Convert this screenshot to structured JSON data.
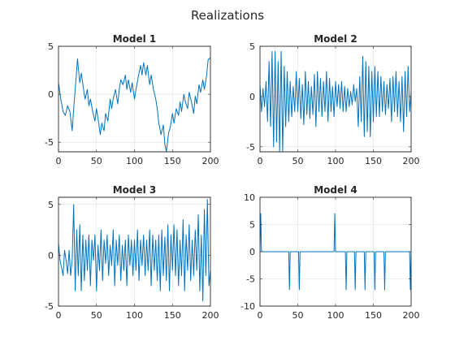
{
  "figure": {
    "title": "Realizations"
  },
  "style": {
    "series_color": "#0072bd"
  },
  "chart_data": [
    {
      "type": "line",
      "title": "Model 1",
      "xlim": [
        0,
        200
      ],
      "ylim": [
        -6,
        5
      ],
      "xticks": [
        0,
        50,
        100,
        150,
        200
      ],
      "yticks": [
        -5,
        0,
        5
      ],
      "grid": true,
      "points": [
        [
          0,
          1.2
        ],
        [
          3,
          -0.5
        ],
        [
          6,
          -1.8
        ],
        [
          9,
          -2.2
        ],
        [
          12,
          -1.2
        ],
        [
          15,
          -1.8
        ],
        [
          18,
          -3.8
        ],
        [
          20,
          -1.5
        ],
        [
          23,
          1.5
        ],
        [
          25,
          3.7
        ],
        [
          28,
          1.2
        ],
        [
          30,
          2.2
        ],
        [
          33,
          0.5
        ],
        [
          35,
          -0.5
        ],
        [
          38,
          0.5
        ],
        [
          40,
          -1.2
        ],
        [
          42,
          -0.5
        ],
        [
          45,
          -1.8
        ],
        [
          48,
          -2.8
        ],
        [
          50,
          -1.5
        ],
        [
          52,
          -2.5
        ],
        [
          55,
          -4.2
        ],
        [
          57,
          -3.0
        ],
        [
          60,
          -3.8
        ],
        [
          62,
          -2.0
        ],
        [
          65,
          -2.8
        ],
        [
          68,
          -0.5
        ],
        [
          70,
          -1.5
        ],
        [
          72,
          -0.5
        ],
        [
          75,
          0.5
        ],
        [
          78,
          -1.0
        ],
        [
          80,
          0.5
        ],
        [
          82,
          1.5
        ],
        [
          85,
          1.0
        ],
        [
          88,
          2.0
        ],
        [
          90,
          0.5
        ],
        [
          92,
          1.5
        ],
        [
          95,
          0.2
        ],
        [
          97,
          1.2
        ],
        [
          100,
          -0.5
        ],
        [
          102,
          0.5
        ],
        [
          105,
          1.8
        ],
        [
          108,
          3.0
        ],
        [
          110,
          2.0
        ],
        [
          112,
          3.3
        ],
        [
          115,
          2.0
        ],
        [
          117,
          3.0
        ],
        [
          120,
          1.0
        ],
        [
          122,
          2.0
        ],
        [
          125,
          0.5
        ],
        [
          128,
          -0.5
        ],
        [
          130,
          -1.5
        ],
        [
          132,
          -3.0
        ],
        [
          135,
          -4.2
        ],
        [
          138,
          -3.2
        ],
        [
          140,
          -5.2
        ],
        [
          142,
          -6.0
        ],
        [
          145,
          -4.0
        ],
        [
          147,
          -3.5
        ],
        [
          150,
          -2.0
        ],
        [
          152,
          -3.0
        ],
        [
          155,
          -1.5
        ],
        [
          158,
          -2.2
        ],
        [
          160,
          -0.8
        ],
        [
          162,
          -1.8
        ],
        [
          165,
          0.0
        ],
        [
          167,
          -0.8
        ],
        [
          170,
          -1.5
        ],
        [
          172,
          0.2
        ],
        [
          175,
          -0.8
        ],
        [
          178,
          -2.0
        ],
        [
          180,
          -0.2
        ],
        [
          182,
          -1.0
        ],
        [
          185,
          1.0
        ],
        [
          187,
          0.2
        ],
        [
          190,
          1.5
        ],
        [
          192,
          0.5
        ],
        [
          195,
          2.0
        ],
        [
          197,
          3.6
        ],
        [
          200,
          3.8
        ]
      ]
    },
    {
      "type": "line",
      "title": "Model 2",
      "xlim": [
        0,
        200
      ],
      "ylim": [
        -5.5,
        5
      ],
      "xticks": [
        0,
        50,
        100,
        150,
        200
      ],
      "yticks": [
        -5,
        0,
        5
      ],
      "grid": true,
      "points": [
        [
          0,
          1.2
        ],
        [
          2,
          -1.5
        ],
        [
          4,
          0.8
        ],
        [
          6,
          -1.0
        ],
        [
          8,
          1.5
        ],
        [
          10,
          -2.5
        ],
        [
          12,
          3.5
        ],
        [
          14,
          -3.0
        ],
        [
          16,
          4.5
        ],
        [
          18,
          -5.0
        ],
        [
          20,
          4.5
        ],
        [
          22,
          -4.5
        ],
        [
          24,
          3.5
        ],
        [
          26,
          -5.5
        ],
        [
          28,
          4.5
        ],
        [
          30,
          -5.5
        ],
        [
          32,
          3.0
        ],
        [
          34,
          -3.0
        ],
        [
          36,
          2.5
        ],
        [
          38,
          -2.5
        ],
        [
          40,
          1.5
        ],
        [
          42,
          -2.0
        ],
        [
          44,
          1.0
        ],
        [
          46,
          -1.5
        ],
        [
          48,
          2.5
        ],
        [
          50,
          -1.5
        ],
        [
          52,
          1.8
        ],
        [
          54,
          -2.2
        ],
        [
          56,
          1.2
        ],
        [
          58,
          -2.8
        ],
        [
          60,
          2.5
        ],
        [
          62,
          -1.8
        ],
        [
          64,
          1.5
        ],
        [
          66,
          -2.2
        ],
        [
          68,
          1.0
        ],
        [
          70,
          -1.8
        ],
        [
          72,
          2.2
        ],
        [
          74,
          -3.0
        ],
        [
          76,
          2.5
        ],
        [
          78,
          -1.5
        ],
        [
          80,
          1.8
        ],
        [
          82,
          -2.0
        ],
        [
          84,
          1.5
        ],
        [
          86,
          -1.5
        ],
        [
          88,
          2.5
        ],
        [
          90,
          -2.5
        ],
        [
          92,
          1.8
        ],
        [
          94,
          -1.5
        ],
        [
          96,
          1.0
        ],
        [
          98,
          -2.0
        ],
        [
          100,
          1.5
        ],
        [
          102,
          -1.0
        ],
        [
          104,
          1.2
        ],
        [
          106,
          -1.2
        ],
        [
          108,
          1.5
        ],
        [
          110,
          -1.5
        ],
        [
          112,
          1.0
        ],
        [
          114,
          -1.5
        ],
        [
          116,
          0.8
        ],
        [
          118,
          -1.0
        ],
        [
          120,
          0.5
        ],
        [
          122,
          -0.8
        ],
        [
          124,
          1.2
        ],
        [
          126,
          -0.5
        ],
        [
          128,
          0.8
        ],
        [
          130,
          -3.0
        ],
        [
          132,
          2.0
        ],
        [
          134,
          -2.5
        ],
        [
          136,
          4.0
        ],
        [
          138,
          -4.0
        ],
        [
          140,
          3.5
        ],
        [
          142,
          -3.5
        ],
        [
          144,
          3.0
        ],
        [
          146,
          -4.0
        ],
        [
          148,
          2.5
        ],
        [
          150,
          -2.5
        ],
        [
          152,
          3.0
        ],
        [
          154,
          -2.0
        ],
        [
          156,
          2.5
        ],
        [
          158,
          -2.0
        ],
        [
          160,
          2.0
        ],
        [
          162,
          -1.5
        ],
        [
          164,
          1.5
        ],
        [
          166,
          -1.8
        ],
        [
          168,
          1.2
        ],
        [
          170,
          -1.2
        ],
        [
          172,
          1.8
        ],
        [
          174,
          -2.5
        ],
        [
          176,
          2.0
        ],
        [
          178,
          -1.5
        ],
        [
          180,
          2.5
        ],
        [
          182,
          -2.0
        ],
        [
          184,
          1.5
        ],
        [
          186,
          -2.5
        ],
        [
          188,
          2.0
        ],
        [
          190,
          -3.5
        ],
        [
          192,
          2.5
        ],
        [
          194,
          -2.0
        ],
        [
          196,
          3.0
        ],
        [
          198,
          -1.5
        ],
        [
          200,
          0.5
        ]
      ]
    },
    {
      "type": "line",
      "title": "Model 3",
      "xlim": [
        0,
        200
      ],
      "ylim": [
        -5,
        5.7
      ],
      "xticks": [
        0,
        50,
        100,
        150,
        200
      ],
      "yticks": [
        -5,
        0,
        5
      ],
      "grid": true,
      "points": [
        [
          0,
          1.2
        ],
        [
          2,
          -0.5
        ],
        [
          4,
          -1.2
        ],
        [
          6,
          -2.0
        ],
        [
          8,
          0.5
        ],
        [
          10,
          -0.5
        ],
        [
          12,
          -1.8
        ],
        [
          14,
          0.5
        ],
        [
          16,
          -2.0
        ],
        [
          18,
          -0.5
        ],
        [
          20,
          5.0
        ],
        [
          22,
          -3.5
        ],
        [
          24,
          2.5
        ],
        [
          26,
          -2.0
        ],
        [
          28,
          3.0
        ],
        [
          30,
          -3.5
        ],
        [
          32,
          2.0
        ],
        [
          34,
          -2.5
        ],
        [
          36,
          1.5
        ],
        [
          38,
          -1.5
        ],
        [
          40,
          2.0
        ],
        [
          42,
          -3.0
        ],
        [
          44,
          1.5
        ],
        [
          46,
          -0.5
        ],
        [
          48,
          2.0
        ],
        [
          50,
          -3.5
        ],
        [
          52,
          1.0
        ],
        [
          54,
          -1.5
        ],
        [
          56,
          2.5
        ],
        [
          58,
          -2.5
        ],
        [
          60,
          1.5
        ],
        [
          62,
          -0.8
        ],
        [
          64,
          2.0
        ],
        [
          66,
          -2.0
        ],
        [
          68,
          1.0
        ],
        [
          70,
          -1.0
        ],
        [
          72,
          2.5
        ],
        [
          74,
          -3.0
        ],
        [
          76,
          1.5
        ],
        [
          78,
          -1.0
        ],
        [
          80,
          2.0
        ],
        [
          82,
          -2.5
        ],
        [
          84,
          1.0
        ],
        [
          86,
          -1.5
        ],
        [
          88,
          1.5
        ],
        [
          90,
          -3.0
        ],
        [
          92,
          2.0
        ],
        [
          94,
          -1.0
        ],
        [
          96,
          1.5
        ],
        [
          98,
          -2.0
        ],
        [
          100,
          1.5
        ],
        [
          102,
          -1.5
        ],
        [
          104,
          2.5
        ],
        [
          106,
          -2.5
        ],
        [
          108,
          1.5
        ],
        [
          110,
          -1.0
        ],
        [
          112,
          2.0
        ],
        [
          114,
          -2.0
        ],
        [
          116,
          1.5
        ],
        [
          118,
          -1.5
        ],
        [
          120,
          2.5
        ],
        [
          122,
          -3.0
        ],
        [
          124,
          2.0
        ],
        [
          126,
          -1.5
        ],
        [
          128,
          1.5
        ],
        [
          130,
          -2.5
        ],
        [
          132,
          2.0
        ],
        [
          134,
          -3.5
        ],
        [
          136,
          2.5
        ],
        [
          138,
          -2.0
        ],
        [
          140,
          1.8
        ],
        [
          142,
          -2.5
        ],
        [
          144,
          3.0
        ],
        [
          146,
          -3.5
        ],
        [
          148,
          2.0
        ],
        [
          150,
          -1.5
        ],
        [
          152,
          3.0
        ],
        [
          154,
          -2.0
        ],
        [
          156,
          2.5
        ],
        [
          158,
          -3.0
        ],
        [
          160,
          1.5
        ],
        [
          162,
          -2.0
        ],
        [
          164,
          3.5
        ],
        [
          166,
          -3.5
        ],
        [
          168,
          2.0
        ],
        [
          170,
          -1.5
        ],
        [
          172,
          3.0
        ],
        [
          174,
          -2.5
        ],
        [
          176,
          1.5
        ],
        [
          178,
          -2.0
        ],
        [
          180,
          2.5
        ],
        [
          182,
          -1.5
        ],
        [
          184,
          4.0
        ],
        [
          186,
          -3.5
        ],
        [
          188,
          2.0
        ],
        [
          190,
          -4.5
        ],
        [
          192,
          4.5
        ],
        [
          194,
          -2.0
        ],
        [
          196,
          5.5
        ],
        [
          198,
          -3.0
        ],
        [
          200,
          -1.5
        ]
      ]
    },
    {
      "type": "line",
      "title": "Model 4",
      "xlim": [
        0,
        200
      ],
      "ylim": [
        -10,
        10
      ],
      "xticks": [
        0,
        50,
        100,
        150,
        200
      ],
      "yticks": [
        -10,
        -5,
        0,
        5,
        10
      ],
      "grid": true,
      "points": [
        [
          0,
          0
        ],
        [
          1,
          7
        ],
        [
          2,
          0
        ],
        [
          38,
          0
        ],
        [
          39,
          -7
        ],
        [
          40,
          0
        ],
        [
          51,
          0
        ],
        [
          52,
          -7
        ],
        [
          53,
          0
        ],
        [
          98,
          0
        ],
        [
          99,
          7
        ],
        [
          100,
          0
        ],
        [
          113,
          0
        ],
        [
          114,
          -7
        ],
        [
          115,
          0
        ],
        [
          125,
          0
        ],
        [
          126,
          -7
        ],
        [
          127,
          0
        ],
        [
          138,
          0
        ],
        [
          139,
          -7
        ],
        [
          140,
          0
        ],
        [
          151,
          0
        ],
        [
          152,
          -7
        ],
        [
          153,
          0
        ],
        [
          164,
          0
        ],
        [
          165,
          -7
        ],
        [
          166,
          0
        ],
        [
          198,
          0
        ],
        [
          199,
          -7
        ],
        [
          200,
          0
        ]
      ]
    }
  ]
}
